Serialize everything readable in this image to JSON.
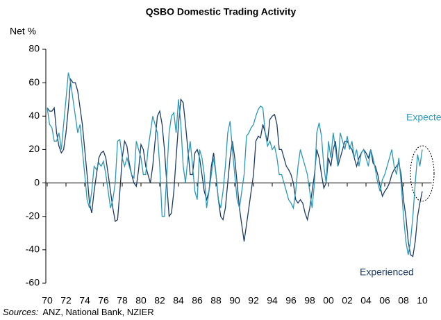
{
  "chart_data": {
    "type": "line",
    "title": "QSBO Domestic Trading Activity",
    "y_label": "Net %",
    "source_label": "Sources:",
    "source": "ANZ, National Bank, NZIER",
    "annotations": [
      "Expected",
      "Experienced"
    ],
    "xlim": [
      1970,
      2011
    ],
    "ylim": [
      -60,
      80
    ],
    "yticks": [
      80,
      60,
      40,
      20,
      0,
      -20,
      -40,
      -60
    ],
    "xticks": [
      {
        "value": 1970,
        "label": "70"
      },
      {
        "value": 1972,
        "label": "72"
      },
      {
        "value": 1974,
        "label": "74"
      },
      {
        "value": 1976,
        "label": "76"
      },
      {
        "value": 1978,
        "label": "78"
      },
      {
        "value": 1980,
        "label": "80"
      },
      {
        "value": 1982,
        "label": "82"
      },
      {
        "value": 1984,
        "label": "84"
      },
      {
        "value": 1986,
        "label": "86"
      },
      {
        "value": 1988,
        "label": "88"
      },
      {
        "value": 1990,
        "label": "90"
      },
      {
        "value": 1992,
        "label": "92"
      },
      {
        "value": 1994,
        "label": "94"
      },
      {
        "value": 1996,
        "label": "96"
      },
      {
        "value": 1998,
        "label": "98"
      },
      {
        "value": 2000,
        "label": "00"
      },
      {
        "value": 2002,
        "label": "02"
      },
      {
        "value": 2004,
        "label": "04"
      },
      {
        "value": 2006,
        "label": "06"
      },
      {
        "value": 2008,
        "label": "08"
      },
      {
        "value": 2010,
        "label": "10"
      }
    ],
    "x": [
      1970,
      1970.25,
      1970.5,
      1970.75,
      1971,
      1971.25,
      1971.5,
      1971.75,
      1972,
      1972.25,
      1972.5,
      1972.75,
      1973,
      1973.25,
      1973.5,
      1973.75,
      1974,
      1974.25,
      1974.5,
      1974.75,
      1975,
      1975.25,
      1975.5,
      1975.75,
      1976,
      1976.25,
      1976.5,
      1976.75,
      1977,
      1977.25,
      1977.5,
      1977.75,
      1978,
      1978.25,
      1978.5,
      1978.75,
      1979,
      1979.25,
      1979.5,
      1979.75,
      1980,
      1980.25,
      1980.5,
      1980.75,
      1981,
      1981.25,
      1981.5,
      1981.75,
      1982,
      1982.25,
      1982.5,
      1982.75,
      1983,
      1983.25,
      1983.5,
      1983.75,
      1984,
      1984.25,
      1984.5,
      1984.75,
      1985,
      1985.25,
      1985.5,
      1985.75,
      1986,
      1986.25,
      1986.5,
      1986.75,
      1987,
      1987.25,
      1987.5,
      1987.75,
      1988,
      1988.25,
      1988.5,
      1988.75,
      1989,
      1989.25,
      1989.5,
      1989.75,
      1990,
      1990.25,
      1990.5,
      1990.75,
      1991,
      1991.25,
      1991.5,
      1991.75,
      1992,
      1992.25,
      1992.5,
      1992.75,
      1993,
      1993.25,
      1993.5,
      1993.75,
      1994,
      1994.25,
      1994.5,
      1994.75,
      1995,
      1995.25,
      1995.5,
      1995.75,
      1996,
      1996.25,
      1996.5,
      1996.75,
      1997,
      1997.25,
      1997.5,
      1997.75,
      1998,
      1998.25,
      1998.5,
      1998.75,
      1999,
      1999.25,
      1999.5,
      1999.75,
      2000,
      2000.25,
      2000.5,
      2000.75,
      2001,
      2001.25,
      2001.5,
      2001.75,
      2002,
      2002.25,
      2002.5,
      2002.75,
      2003,
      2003.25,
      2003.5,
      2003.75,
      2004,
      2004.25,
      2004.5,
      2004.75,
      2005,
      2005.25,
      2005.5,
      2005.75,
      2006,
      2006.25,
      2006.5,
      2006.75,
      2007,
      2007.25,
      2007.5,
      2007.75,
      2008,
      2008.25,
      2008.5,
      2008.75,
      2009,
      2009.25,
      2009.5,
      2009.75,
      2010
    ],
    "series": [
      {
        "name": "Experienced",
        "color": "#1b3a66",
        "values": [
          45,
          43,
          43,
          45,
          30,
          22,
          18,
          20,
          30,
          45,
          62,
          60,
          60,
          55,
          45,
          35,
          20,
          5,
          -12,
          -18,
          -5,
          5,
          15,
          18,
          19,
          15,
          5,
          -5,
          -15,
          -23,
          -22,
          -5,
          15,
          25,
          22,
          12,
          5,
          0,
          -2,
          8,
          23,
          20,
          10,
          5,
          0,
          10,
          25,
          40,
          43,
          35,
          20,
          0,
          -20,
          -18,
          -5,
          15,
          35,
          50,
          48,
          35,
          20,
          5,
          5,
          18,
          20,
          15,
          5,
          -5,
          -10,
          -5,
          10,
          18,
          5,
          -10,
          -20,
          -22,
          -15,
          0,
          15,
          25,
          15,
          0,
          -15,
          -25,
          -35,
          -25,
          -15,
          -5,
          5,
          25,
          28,
          27,
          35,
          30,
          25,
          38,
          40,
          41,
          35,
          20,
          20,
          15,
          10,
          8,
          5,
          0,
          -10,
          -12,
          -10,
          -12,
          -18,
          -22,
          -15,
          -5,
          5,
          20,
          15,
          5,
          -3,
          0,
          15,
          10,
          20,
          25,
          10,
          15,
          20,
          25,
          25,
          22,
          20,
          15,
          10,
          15,
          18,
          20,
          18,
          15,
          20,
          12,
          10,
          5,
          -2,
          -8,
          -5,
          -3,
          0,
          5,
          8,
          10,
          12,
          5,
          -10,
          -20,
          -35,
          -43,
          -44,
          -35,
          -20,
          -12,
          -5
        ]
      },
      {
        "name": "Expected",
        "color": "#2a98b8",
        "values": [
          45,
          35,
          33,
          25,
          25,
          30,
          20,
          35,
          50,
          66,
          60,
          50,
          40,
          30,
          35,
          20,
          5,
          -10,
          -15,
          -5,
          10,
          8,
          12,
          10,
          13,
          5,
          -5,
          -15,
          -10,
          0,
          25,
          26,
          15,
          10,
          15,
          10,
          5,
          3,
          25,
          20,
          15,
          5,
          5,
          20,
          30,
          40,
          35,
          30,
          10,
          -20,
          -20,
          5,
          30,
          40,
          42,
          30,
          50,
          35,
          10,
          0,
          15,
          25,
          10,
          -5,
          -10,
          20,
          15,
          5,
          -15,
          -5,
          5,
          15,
          5,
          -10,
          -15,
          -5,
          10,
          30,
          37,
          20,
          5,
          -10,
          -15,
          -5,
          5,
          28,
          30,
          33,
          35,
          40,
          44,
          46,
          45,
          30,
          22,
          25,
          20,
          22,
          15,
          5,
          5,
          0,
          -5,
          -10,
          -12,
          -15,
          -5,
          10,
          20,
          15,
          10,
          5,
          -5,
          -15,
          0,
          30,
          36,
          28,
          10,
          0,
          25,
          15,
          30,
          20,
          10,
          30,
          25,
          20,
          28,
          20,
          25,
          15,
          20,
          10,
          18,
          20,
          15,
          10,
          20,
          15,
          8,
          0,
          -5,
          2,
          5,
          10,
          15,
          20,
          10,
          5,
          15,
          0,
          -20,
          -35,
          -43,
          -35,
          -20,
          0,
          17,
          10,
          20
        ]
      }
    ]
  }
}
